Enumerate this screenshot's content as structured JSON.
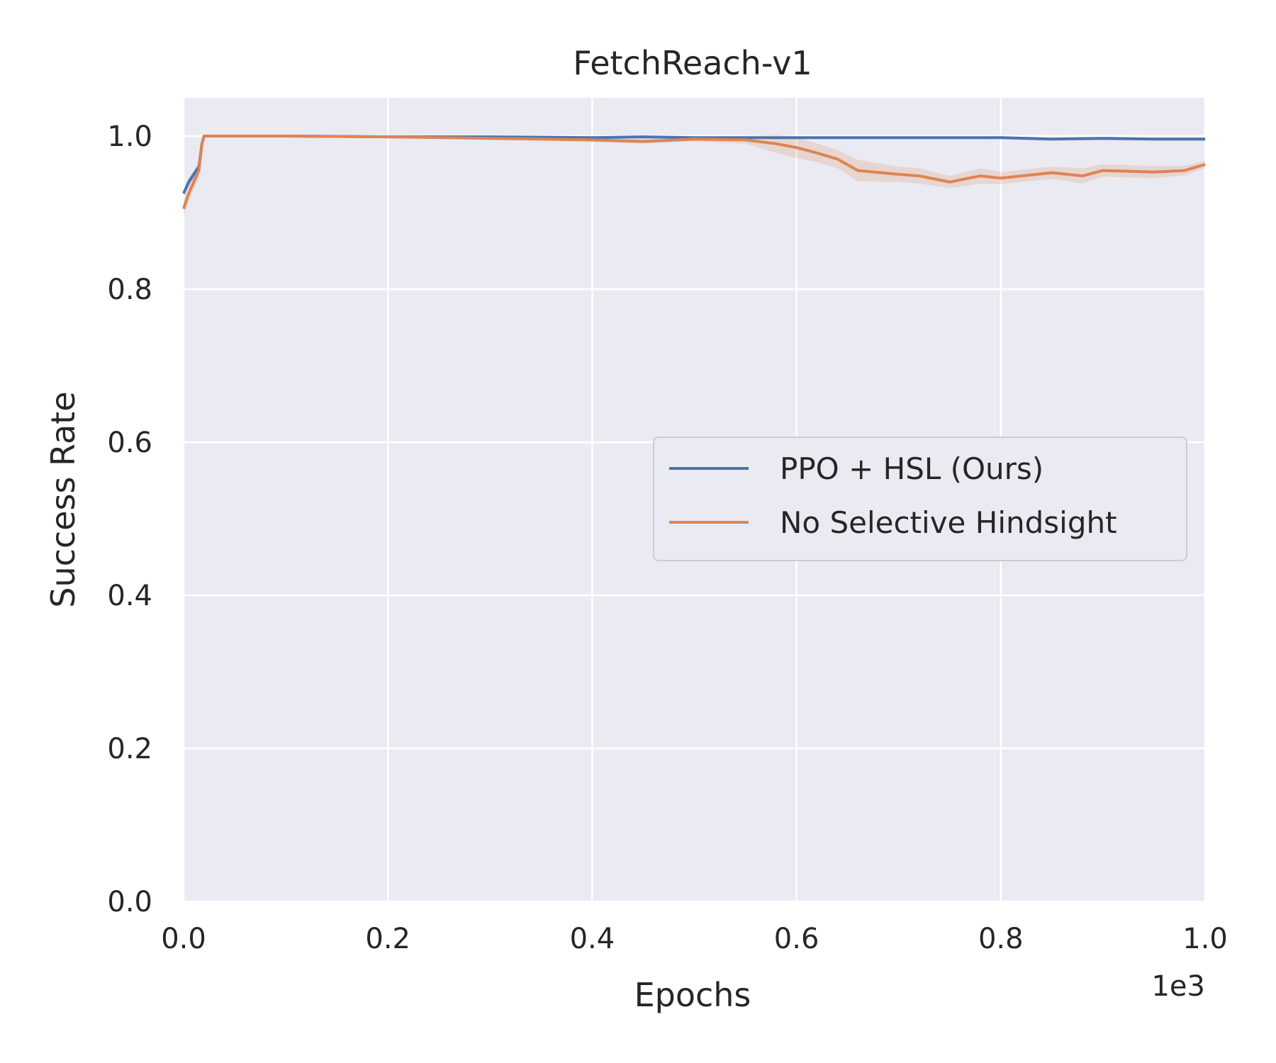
{
  "chart_data": {
    "type": "line",
    "title": "FetchReach-v1",
    "xlabel": "Epochs",
    "ylabel": "Success Rate",
    "x_offset_text": "1e3",
    "xlim": [
      0.0,
      1.0
    ],
    "ylim": [
      0.0,
      1.05
    ],
    "xticks": [
      "0.0",
      "0.2",
      "0.4",
      "0.6",
      "0.8",
      "1.0"
    ],
    "yticks": [
      "0.0",
      "0.2",
      "0.4",
      "0.6",
      "0.8",
      "1.0"
    ],
    "grid": true,
    "legend_position": "center-right",
    "series": [
      {
        "name": "PPO + HSL (Ours)",
        "color": "#4c72b0",
        "x": [
          0.0,
          0.005,
          0.01,
          0.015,
          0.018,
          0.02,
          0.03,
          0.1,
          0.2,
          0.3,
          0.4,
          0.45,
          0.5,
          0.6,
          0.7,
          0.8,
          0.85,
          0.9,
          0.95,
          1.0
        ],
        "y": [
          0.925,
          0.94,
          0.95,
          0.96,
          0.99,
          1.0,
          1.0,
          1.0,
          0.999,
          0.999,
          0.998,
          0.999,
          0.998,
          0.998,
          0.998,
          0.998,
          0.996,
          0.997,
          0.996,
          0.996
        ],
        "band": [
          0.005,
          0.005,
          0.005,
          0.005,
          0.002,
          0.0,
          0.0,
          0.0,
          0.0,
          0.0,
          0.001,
          0.001,
          0.001,
          0.001,
          0.001,
          0.002,
          0.002,
          0.002,
          0.002,
          0.002
        ]
      },
      {
        "name": "No Selective Hindsight",
        "color": "#dd8452",
        "x": [
          0.0,
          0.005,
          0.01,
          0.015,
          0.018,
          0.02,
          0.03,
          0.1,
          0.2,
          0.3,
          0.35,
          0.4,
          0.45,
          0.5,
          0.55,
          0.58,
          0.6,
          0.62,
          0.64,
          0.66,
          0.7,
          0.72,
          0.75,
          0.78,
          0.8,
          0.82,
          0.85,
          0.88,
          0.9,
          0.95,
          0.98,
          1.0
        ],
        "y": [
          0.905,
          0.925,
          0.94,
          0.955,
          0.99,
          1.0,
          1.0,
          1.0,
          0.999,
          0.997,
          0.996,
          0.995,
          0.993,
          0.996,
          0.995,
          0.99,
          0.985,
          0.978,
          0.97,
          0.955,
          0.95,
          0.948,
          0.94,
          0.948,
          0.945,
          0.948,
          0.952,
          0.948,
          0.955,
          0.953,
          0.955,
          0.963
        ],
        "band": [
          0.01,
          0.01,
          0.01,
          0.01,
          0.005,
          0.002,
          0.0,
          0.0,
          0.001,
          0.002,
          0.002,
          0.003,
          0.003,
          0.003,
          0.005,
          0.012,
          0.014,
          0.012,
          0.012,
          0.014,
          0.01,
          0.01,
          0.008,
          0.01,
          0.008,
          0.008,
          0.008,
          0.01,
          0.008,
          0.008,
          0.006,
          0.005
        ]
      }
    ]
  }
}
